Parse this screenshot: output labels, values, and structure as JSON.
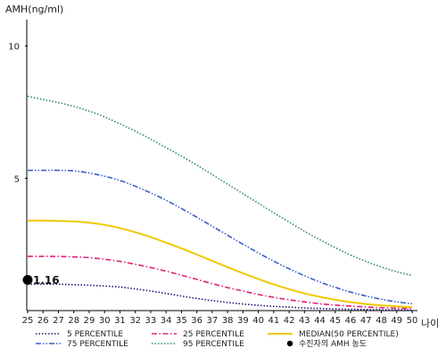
{
  "chart_data": {
    "type": "line",
    "ylabel": "AMH(ng/ml)",
    "xlabel": "나이",
    "xlim": [
      25,
      50
    ],
    "ylim": [
      0,
      11
    ],
    "yticks": [
      5,
      10
    ],
    "x": [
      25,
      26,
      27,
      28,
      29,
      30,
      31,
      32,
      33,
      34,
      35,
      36,
      37,
      38,
      39,
      40,
      41,
      42,
      43,
      44,
      45,
      46,
      47,
      48,
      49,
      50
    ],
    "series": [
      {
        "name": "5 PERCENTILE",
        "color": "#1a1a7a",
        "dash": "dotted",
        "values": [
          1.0,
          1.0,
          1.0,
          0.98,
          0.96,
          0.93,
          0.89,
          0.82,
          0.74,
          0.65,
          0.55,
          0.46,
          0.38,
          0.31,
          0.25,
          0.2,
          0.16,
          0.13,
          0.1,
          0.08,
          0.06,
          0.05,
          0.04,
          0.03,
          0.03,
          0.02
        ]
      },
      {
        "name": "25 PERCENTILE",
        "color": "#e0207a",
        "dash": "dashdot",
        "values": [
          2.05,
          2.05,
          2.05,
          2.03,
          2.0,
          1.94,
          1.86,
          1.75,
          1.63,
          1.49,
          1.34,
          1.18,
          1.02,
          0.87,
          0.74,
          0.61,
          0.5,
          0.41,
          0.33,
          0.26,
          0.21,
          0.17,
          0.14,
          0.11,
          0.09,
          0.08
        ]
      },
      {
        "name": "MEDIAN(50 PERCENTILE)",
        "color": "#f0c800",
        "dash": "solid",
        "values": [
          3.4,
          3.4,
          3.39,
          3.37,
          3.32,
          3.24,
          3.12,
          2.96,
          2.78,
          2.57,
          2.35,
          2.12,
          1.88,
          1.64,
          1.41,
          1.19,
          0.99,
          0.81,
          0.65,
          0.52,
          0.41,
          0.32,
          0.25,
          0.2,
          0.16,
          0.13
        ]
      },
      {
        "name": "75 PERCENTILE",
        "color": "#3a5fc8",
        "dash": "dashdotdot",
        "values": [
          5.3,
          5.3,
          5.3,
          5.28,
          5.2,
          5.08,
          4.92,
          4.7,
          4.45,
          4.17,
          3.86,
          3.53,
          3.19,
          2.85,
          2.51,
          2.18,
          1.87,
          1.58,
          1.32,
          1.08,
          0.88,
          0.7,
          0.55,
          0.43,
          0.33,
          0.26
        ]
      },
      {
        "name": "95 PERCENTILE",
        "color": "#2e8b57",
        "dash": "dotted",
        "values": [
          8.1,
          7.98,
          7.86,
          7.72,
          7.54,
          7.32,
          7.06,
          6.78,
          6.48,
          6.16,
          5.84,
          5.5,
          5.14,
          4.78,
          4.42,
          4.06,
          3.7,
          3.35,
          3.0,
          2.68,
          2.38,
          2.1,
          1.86,
          1.65,
          1.47,
          1.33
        ]
      }
    ],
    "marker": {
      "name": "수진자의 AMH 농도",
      "x": 25,
      "y": 1.16,
      "label": "1.16",
      "color": "#000000"
    },
    "legend": {
      "placement": "bottom",
      "entries": [
        {
          "name": "5 PERCENTILE",
          "style": "dotted",
          "color": "#1a1a7a"
        },
        {
          "name": "25 PERCENTILE",
          "style": "dashdot",
          "color": "#e0207a"
        },
        {
          "name": "MEDIAN(50 PERCENTILE)",
          "style": "solid",
          "color": "#f0c800"
        },
        {
          "name": "75 PERCENTILE",
          "style": "dashdotdot",
          "color": "#3a5fc8"
        },
        {
          "name": "95 PERCENTILE",
          "style": "dotted",
          "color": "#2e8b57"
        },
        {
          "name": "수진자의 AMH 농도",
          "style": "marker",
          "color": "#000000"
        }
      ]
    },
    "grid": false
  }
}
